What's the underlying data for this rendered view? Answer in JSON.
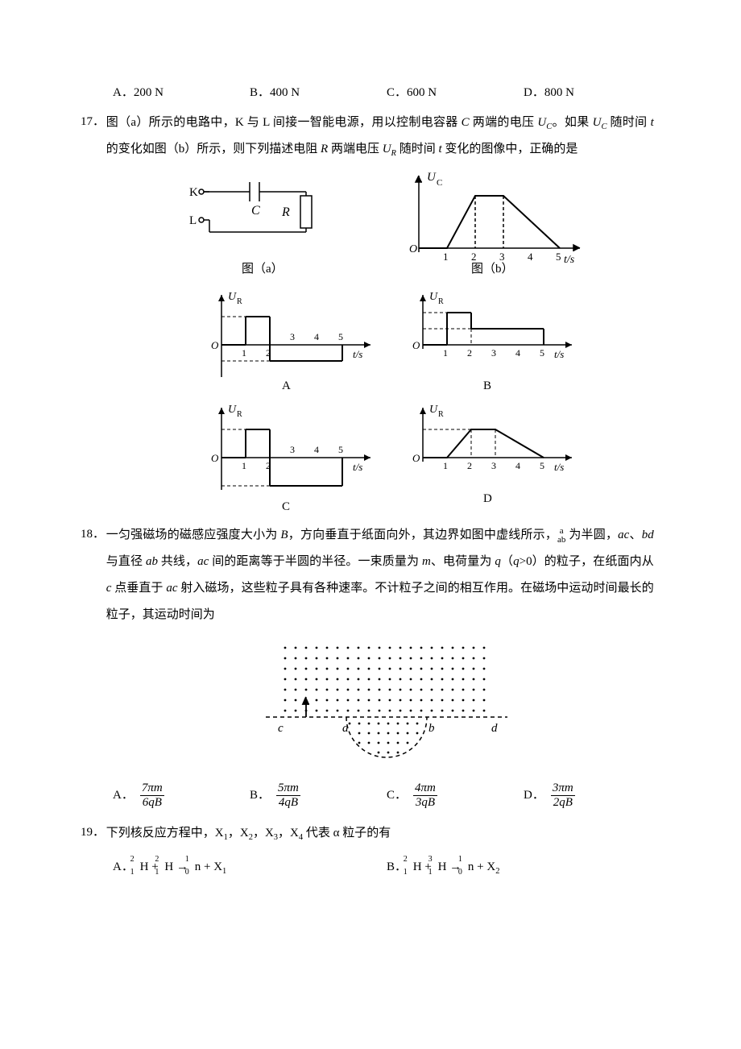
{
  "q16": {
    "options": {
      "A": "A．200 N",
      "B": "B．400 N",
      "C": "C．600 N",
      "D": "D．800 N"
    }
  },
  "q17": {
    "number": "17．",
    "text": "图（a）所示的电路中，K 与 L 间接一智能电源，用以控制电容器 C 两端的电压 U_C。如果 U_C 随时间 t 的变化如图（b）所示，则下列描述电阻 R 两端电压 U_R 随时间 t 变化的图像中，正确的是",
    "circuit": {
      "K": "K",
      "L": "L",
      "C": "C",
      "R": "R",
      "cap_a": "图（a）"
    },
    "graph_b": {
      "ylabel": "U",
      "ysub": "C",
      "xlabel": "t/s",
      "ticks": [
        "1",
        "2",
        "3",
        "4",
        "5"
      ],
      "cap": "图（b）",
      "line_color": "#000000",
      "axis_color": "#000000",
      "dash": "4,3"
    },
    "ans_graphs": {
      "ylabel": "U",
      "ysub": "R",
      "xlabel": "t/s",
      "ticks": [
        "1",
        "2",
        "3",
        "4",
        "5"
      ],
      "labels": {
        "A": "A",
        "B": "B",
        "C": "C",
        "D": "D"
      }
    }
  },
  "q18": {
    "number": "18．",
    "text_parts": [
      "一匀强磁场的磁感应强度大小为 B，方向垂直于纸面向外，其边界如图中虚线所示，",
      " 为半圆，ac、bd 与直径 ab 共线，ac 间的距离等于半圆的半径。一束质量为 m、电荷量为 q（q>0）的粒子，在纸面内从 c 点垂直于 ac 射入磁场，这些粒子具有各种速率。不计粒子之间的相互作用。在磁场中运动时间最长的粒子，其运动时间为"
    ],
    "arc_label_top": "a",
    "arc_label_bot": "ab",
    "fig": {
      "labels": {
        "c": "c",
        "a": "a",
        "b": "b",
        "d": "d"
      }
    },
    "options": {
      "A": {
        "lbl": "A．",
        "num": "7πm",
        "den": "6qB"
      },
      "B": {
        "lbl": "B．",
        "num": "5πm",
        "den": "4qB"
      },
      "C": {
        "lbl": "C．",
        "num": "4πm",
        "den": "3qB"
      },
      "D": {
        "lbl": "D．",
        "num": "3πm",
        "den": "2qB"
      }
    }
  },
  "q19": {
    "number": "19．",
    "text": "下列核反应方程中，X₁，X₂，X₃，X₄ 代表 α 粒子的有",
    "optA": {
      "lbl": "A．",
      "eq": "²₁H + ²₁H → ¹₀n + X₁"
    },
    "optB": {
      "lbl": "B．",
      "eq": "²₁H + ³₁H → ¹₀n + X₂"
    }
  },
  "style": {
    "text_color": "#000000",
    "bg_color": "#ffffff",
    "font_size_body": 15,
    "font_size_label": 14,
    "stroke_width": 1.5
  }
}
